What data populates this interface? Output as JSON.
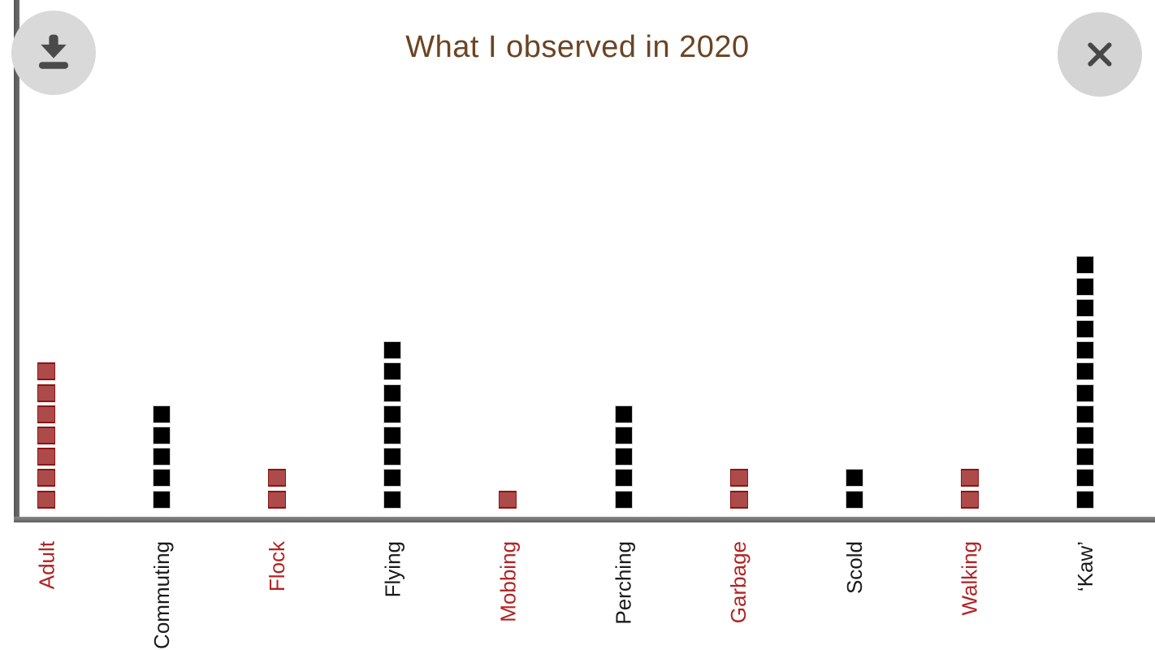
{
  "window": {
    "background": "#ffffff",
    "axis_color": "#666666"
  },
  "controls": {
    "download_button": {
      "icon": "download-arrow-to-tray",
      "bg": "#d9d9d9",
      "fg": "#4a4a4a"
    },
    "close_button": {
      "icon": "x-mark",
      "bg": "#d4d4d4",
      "fg": "#474747"
    }
  },
  "chart_data": {
    "type": "bar",
    "variant": "unit-square stacked columns (1 square = 1 observation)",
    "title": "What I observed in 2020",
    "title_color": "#6b4423",
    "categories": [
      "Adult",
      "Commuting",
      "Flock",
      "Flying",
      "Mobbing",
      "Perching",
      "Garbage",
      "Scold",
      "Walking",
      "‘Kaw’"
    ],
    "values": [
      7,
      5,
      2,
      8,
      1,
      5,
      2,
      2,
      2,
      12
    ],
    "category_colors": [
      "red",
      "black",
      "red",
      "black",
      "red",
      "black",
      "red",
      "black",
      "red",
      "black"
    ],
    "palette": {
      "red_fill": "#ad4b4b",
      "red_edge": "#8e1414",
      "red_label": "#b22222",
      "black_fill": "#000000",
      "black_edge": "#cccccc",
      "black_label": "#1a1a1a"
    },
    "xlabel": "",
    "ylabel": "",
    "y_axis_ticks": [],
    "grid": false,
    "legend": "none",
    "x_tick_label_rotation_deg": 90
  }
}
